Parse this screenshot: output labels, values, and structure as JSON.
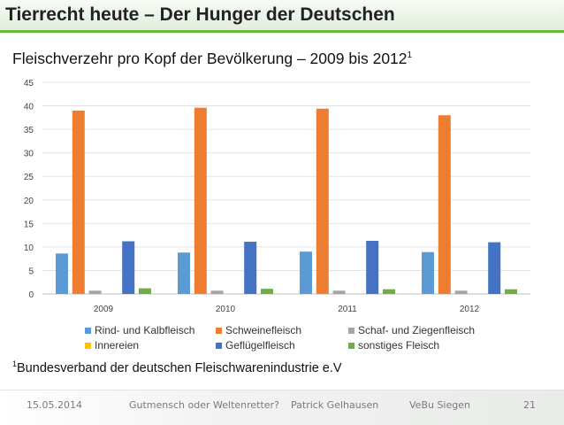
{
  "header": {
    "title": "Tierrecht heute – Der Hunger der Deutschen"
  },
  "slide": {
    "subtitle_text": "Fleischverzehr pro Kopf der Bevölkerung – 2009 bis 2012",
    "subtitle_sup": "1",
    "footnote_sup": "1",
    "footnote_text": "Bundesverband der deutschen Fleischwarenindustrie e.V"
  },
  "footer": {
    "date": "15.05.2014",
    "talk": "Gutmensch oder Weltenretter?",
    "author": "Patrick Gelhausen",
    "event": "VeBu Siegen",
    "page": "21"
  },
  "colors": {
    "accent": "#6fb840",
    "rind": "#5b9bd5",
    "schwein": "#ed7d31",
    "schaf": "#a5a5a5",
    "innereien": "#ffc000",
    "gefluegel": "#4472c4",
    "sonstiges": "#70ad47"
  },
  "chart_data": {
    "type": "bar",
    "title": "Fleischverzehr pro Kopf der Bevölkerung – 2009 bis 2012",
    "categories": [
      "2009",
      "2010",
      "2011",
      "2012"
    ],
    "series": [
      {
        "name": "Rind- und Kalbfleisch",
        "color": "#5b9bd5",
        "values": [
          8.6,
          8.8,
          9.0,
          8.9
        ]
      },
      {
        "name": "Schweinefleisch",
        "color": "#ed7d31",
        "values": [
          39.0,
          39.6,
          39.4,
          38.0
        ]
      },
      {
        "name": "Schaf- und Ziegenfleisch",
        "color": "#a5a5a5",
        "values": [
          0.7,
          0.7,
          0.7,
          0.7
        ]
      },
      {
        "name": "Innereien",
        "color": "#ffc000",
        "values": [
          0.1,
          0.1,
          0.1,
          0.1
        ]
      },
      {
        "name": "Geflügelfleisch",
        "color": "#4472c4",
        "values": [
          11.2,
          11.1,
          11.3,
          11.0
        ]
      },
      {
        "name": "sonstiges Fleisch",
        "color": "#70ad47",
        "values": [
          1.2,
          1.1,
          1.0,
          1.0
        ]
      }
    ],
    "yticks": [
      "0",
      "5",
      "10",
      "15",
      "20",
      "25",
      "30",
      "35",
      "40",
      "45"
    ],
    "ylim": [
      0,
      45
    ],
    "xlabel": "",
    "ylabel": "",
    "grid": true,
    "legend": "bottom"
  }
}
